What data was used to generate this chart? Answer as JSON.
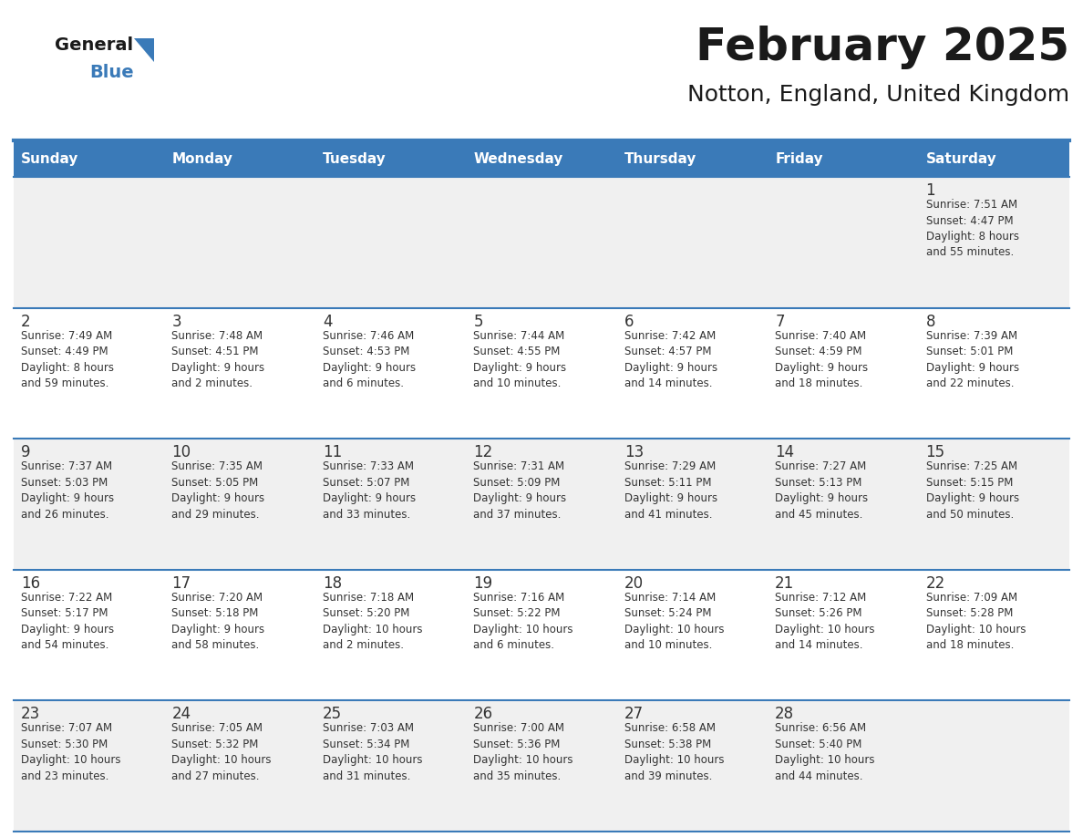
{
  "title": "February 2025",
  "subtitle": "Notton, England, United Kingdom",
  "days_of_week": [
    "Sunday",
    "Monday",
    "Tuesday",
    "Wednesday",
    "Thursday",
    "Friday",
    "Saturday"
  ],
  "header_bg": "#3a7ab8",
  "header_text": "#ffffff",
  "row_bg_odd": "#f0f0f0",
  "row_bg_even": "#ffffff",
  "cell_border": "#3a7ab8",
  "title_color": "#1a1a1a",
  "subtitle_color": "#1a1a1a",
  "day_number_color": "#333333",
  "cell_text_color": "#333333",
  "logo_text_color": "#1a1a1a",
  "logo_blue_color": "#3a7ab8",
  "logo_triangle_color": "#3a7ab8",
  "calendar_data": [
    [
      {
        "day": "",
        "info": ""
      },
      {
        "day": "",
        "info": ""
      },
      {
        "day": "",
        "info": ""
      },
      {
        "day": "",
        "info": ""
      },
      {
        "day": "",
        "info": ""
      },
      {
        "day": "",
        "info": ""
      },
      {
        "day": "1",
        "info": "Sunrise: 7:51 AM\nSunset: 4:47 PM\nDaylight: 8 hours\nand 55 minutes."
      }
    ],
    [
      {
        "day": "2",
        "info": "Sunrise: 7:49 AM\nSunset: 4:49 PM\nDaylight: 8 hours\nand 59 minutes."
      },
      {
        "day": "3",
        "info": "Sunrise: 7:48 AM\nSunset: 4:51 PM\nDaylight: 9 hours\nand 2 minutes."
      },
      {
        "day": "4",
        "info": "Sunrise: 7:46 AM\nSunset: 4:53 PM\nDaylight: 9 hours\nand 6 minutes."
      },
      {
        "day": "5",
        "info": "Sunrise: 7:44 AM\nSunset: 4:55 PM\nDaylight: 9 hours\nand 10 minutes."
      },
      {
        "day": "6",
        "info": "Sunrise: 7:42 AM\nSunset: 4:57 PM\nDaylight: 9 hours\nand 14 minutes."
      },
      {
        "day": "7",
        "info": "Sunrise: 7:40 AM\nSunset: 4:59 PM\nDaylight: 9 hours\nand 18 minutes."
      },
      {
        "day": "8",
        "info": "Sunrise: 7:39 AM\nSunset: 5:01 PM\nDaylight: 9 hours\nand 22 minutes."
      }
    ],
    [
      {
        "day": "9",
        "info": "Sunrise: 7:37 AM\nSunset: 5:03 PM\nDaylight: 9 hours\nand 26 minutes."
      },
      {
        "day": "10",
        "info": "Sunrise: 7:35 AM\nSunset: 5:05 PM\nDaylight: 9 hours\nand 29 minutes."
      },
      {
        "day": "11",
        "info": "Sunrise: 7:33 AM\nSunset: 5:07 PM\nDaylight: 9 hours\nand 33 minutes."
      },
      {
        "day": "12",
        "info": "Sunrise: 7:31 AM\nSunset: 5:09 PM\nDaylight: 9 hours\nand 37 minutes."
      },
      {
        "day": "13",
        "info": "Sunrise: 7:29 AM\nSunset: 5:11 PM\nDaylight: 9 hours\nand 41 minutes."
      },
      {
        "day": "14",
        "info": "Sunrise: 7:27 AM\nSunset: 5:13 PM\nDaylight: 9 hours\nand 45 minutes."
      },
      {
        "day": "15",
        "info": "Sunrise: 7:25 AM\nSunset: 5:15 PM\nDaylight: 9 hours\nand 50 minutes."
      }
    ],
    [
      {
        "day": "16",
        "info": "Sunrise: 7:22 AM\nSunset: 5:17 PM\nDaylight: 9 hours\nand 54 minutes."
      },
      {
        "day": "17",
        "info": "Sunrise: 7:20 AM\nSunset: 5:18 PM\nDaylight: 9 hours\nand 58 minutes."
      },
      {
        "day": "18",
        "info": "Sunrise: 7:18 AM\nSunset: 5:20 PM\nDaylight: 10 hours\nand 2 minutes."
      },
      {
        "day": "19",
        "info": "Sunrise: 7:16 AM\nSunset: 5:22 PM\nDaylight: 10 hours\nand 6 minutes."
      },
      {
        "day": "20",
        "info": "Sunrise: 7:14 AM\nSunset: 5:24 PM\nDaylight: 10 hours\nand 10 minutes."
      },
      {
        "day": "21",
        "info": "Sunrise: 7:12 AM\nSunset: 5:26 PM\nDaylight: 10 hours\nand 14 minutes."
      },
      {
        "day": "22",
        "info": "Sunrise: 7:09 AM\nSunset: 5:28 PM\nDaylight: 10 hours\nand 18 minutes."
      }
    ],
    [
      {
        "day": "23",
        "info": "Sunrise: 7:07 AM\nSunset: 5:30 PM\nDaylight: 10 hours\nand 23 minutes."
      },
      {
        "day": "24",
        "info": "Sunrise: 7:05 AM\nSunset: 5:32 PM\nDaylight: 10 hours\nand 27 minutes."
      },
      {
        "day": "25",
        "info": "Sunrise: 7:03 AM\nSunset: 5:34 PM\nDaylight: 10 hours\nand 31 minutes."
      },
      {
        "day": "26",
        "info": "Sunrise: 7:00 AM\nSunset: 5:36 PM\nDaylight: 10 hours\nand 35 minutes."
      },
      {
        "day": "27",
        "info": "Sunrise: 6:58 AM\nSunset: 5:38 PM\nDaylight: 10 hours\nand 39 minutes."
      },
      {
        "day": "28",
        "info": "Sunrise: 6:56 AM\nSunset: 5:40 PM\nDaylight: 10 hours\nand 44 minutes."
      },
      {
        "day": "",
        "info": ""
      }
    ]
  ]
}
